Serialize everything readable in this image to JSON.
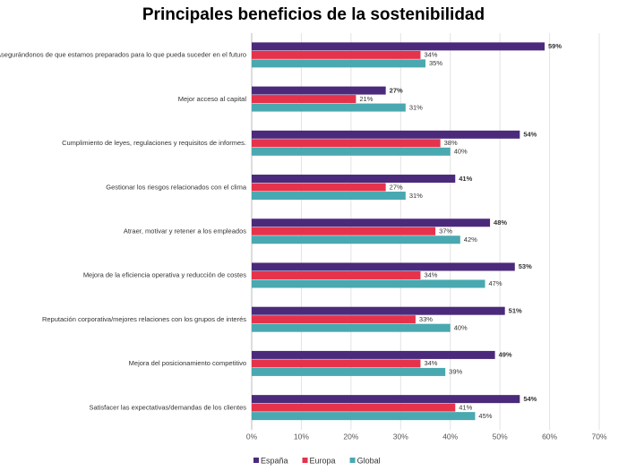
{
  "chart_data": {
    "type": "hbar",
    "title": "Principales beneficios de la sostenibilidad",
    "categories": [
      "Asegurándonos de que estamos preparados para lo que pueda suceder en el futuro",
      "Mejor acceso al capital",
      "Cumplimiento de leyes, regulaciones y requisitos de informes.",
      "Gestionar los riesgos relacionados con el clima",
      "Atraer, motivar y retener a los empleados",
      "Mejora de la eficiencia operativa y reducción de costes",
      "Reputación corporativa/mejores relaciones con los grupos de interés",
      "Mejora del posicionamiento competitivo",
      "Satisfacer las expectativas/demandas de los clientes"
    ],
    "series": [
      {
        "name": "España",
        "color": "#4b2a7b",
        "values": [
          59,
          27,
          54,
          41,
          48,
          53,
          51,
          49,
          54
        ],
        "value_labels": [
          "59%",
          "27%",
          "54%",
          "41%",
          "48%",
          "53%",
          "51%",
          "49%",
          "54%"
        ]
      },
      {
        "name": "Europa",
        "color": "#e5334b",
        "values": [
          34,
          21,
          38,
          27,
          37,
          34,
          33,
          34,
          41
        ],
        "value_labels": [
          "34%",
          "21%",
          "38%",
          "27%",
          "37%",
          "34%",
          "33%",
          "34%",
          "41%"
        ]
      },
      {
        "name": "Global",
        "color": "#4aa8b0",
        "values": [
          35,
          31,
          40,
          31,
          42,
          47,
          40,
          39,
          45
        ],
        "value_labels": [
          "35%",
          "31%",
          "40%",
          "31%",
          "42%",
          "47%",
          "40%",
          "39%",
          "45%"
        ]
      }
    ],
    "xlim": [
      0,
      70
    ],
    "xticks": [
      {
        "value": 0,
        "label": "0%"
      },
      {
        "value": 10,
        "label": "10%"
      },
      {
        "value": 20,
        "label": "20%"
      },
      {
        "value": 30,
        "label": "30%"
      },
      {
        "value": 40,
        "label": "40%"
      },
      {
        "value": 50,
        "label": "50%"
      },
      {
        "value": 60,
        "label": "60%"
      },
      {
        "value": 70,
        "label": "70%"
      }
    ],
    "grid": true,
    "legend": "bottom"
  }
}
